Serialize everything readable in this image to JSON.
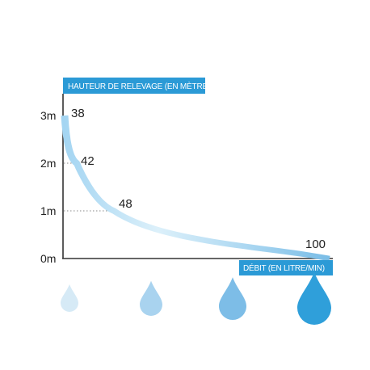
{
  "chart_data": {
    "type": "line",
    "title": "",
    "ylabel": "HAUTEUR DE RELEVAGE (EN MÈTRE)",
    "xlabel": "DÉBIT (EN LITRE/MIN)",
    "y_ticks": [
      "0m",
      "1m",
      "2m",
      "3m"
    ],
    "ylim": [
      0,
      3
    ],
    "x": [
      38,
      42,
      48,
      100
    ],
    "y": [
      3,
      2,
      1,
      0
    ],
    "point_labels": [
      "38",
      "42",
      "48",
      "100"
    ],
    "curve_colors": [
      "#9fd3f1",
      "#dbeef9",
      "#7bbde6"
    ],
    "drops": [
      {
        "name": "water-drop-small",
        "color": "#d6eaf6"
      },
      {
        "name": "water-drop-medium",
        "color": "#a9d3ef"
      },
      {
        "name": "water-drop-large",
        "color": "#7dbde7"
      },
      {
        "name": "water-drop-xlarge",
        "color": "#2f9fda"
      }
    ]
  }
}
